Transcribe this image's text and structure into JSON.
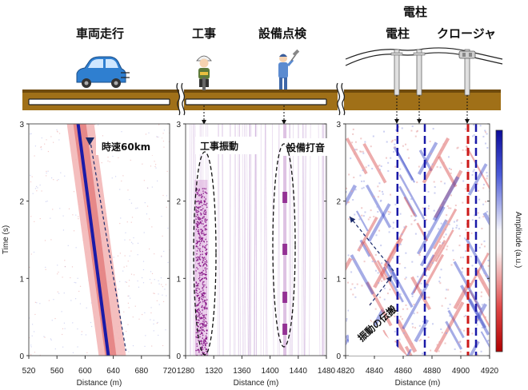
{
  "header": {
    "scene_labels": [
      "車両走行",
      "工事",
      "設備点検",
      "電柱",
      "クロージャ"
    ],
    "pole_group_label": "電柱"
  },
  "colors": {
    "ground": "#a07018",
    "ground_dark": "#6f4a0c",
    "cable": "#222222",
    "positive": "#1a1aa8",
    "negative": "#cc1a1a",
    "construction": "#7a007a"
  },
  "icons": [
    "car-icon",
    "construction-worker-icon",
    "inspection-worker-icon",
    "utility-pole-icon",
    "closure-icon"
  ],
  "chart_data": [
    {
      "type": "heatmap",
      "panel": "vehicle",
      "xlabel": "Distance (m)",
      "ylabel": "Time (s)",
      "xlim": [
        520,
        720
      ],
      "ylim": [
        0,
        3
      ],
      "xticks": [
        520,
        560,
        600,
        640,
        680,
        720
      ],
      "yticks": [
        0,
        1,
        2,
        3
      ],
      "annotations": [
        {
          "text": "時速60km"
        }
      ],
      "traces": [
        {
          "name": "vehicle",
          "x_at_t0": 633,
          "x_at_t3": 590
        }
      ]
    },
    {
      "type": "heatmap",
      "panel": "construction-inspection",
      "xlabel": "Distance (m)",
      "xlim": [
        1280,
        1480
      ],
      "ylim": [
        0,
        3
      ],
      "xticks": [
        1280,
        1320,
        1360,
        1400,
        1440,
        1480
      ],
      "yticks": [
        0,
        1,
        2,
        3
      ],
      "annotations": [
        {
          "text": "工事振動"
        },
        {
          "text": "設備打音"
        }
      ],
      "sources": [
        {
          "name": "construction",
          "x": 1302
        },
        {
          "name": "inspection",
          "x": 1421
        }
      ]
    },
    {
      "type": "heatmap",
      "panel": "poles",
      "xlabel": "Distance (m)",
      "xlim": [
        4820,
        4920
      ],
      "ylim": [
        0,
        3
      ],
      "xticks": [
        4820,
        4840,
        4860,
        4880,
        4900,
        4920
      ],
      "yticks": [
        0,
        1,
        2,
        3
      ],
      "annotations": [
        {
          "text": "振動の伝搬"
        }
      ],
      "sources": [
        {
          "name": "pole-1",
          "x": 4856
        },
        {
          "name": "pole-2",
          "x": 4875
        },
        {
          "name": "closure",
          "x": 4905
        }
      ]
    }
  ],
  "colorbar": {
    "label": "Amplitude (a.u.)",
    "range": [
      -1,
      1
    ]
  }
}
